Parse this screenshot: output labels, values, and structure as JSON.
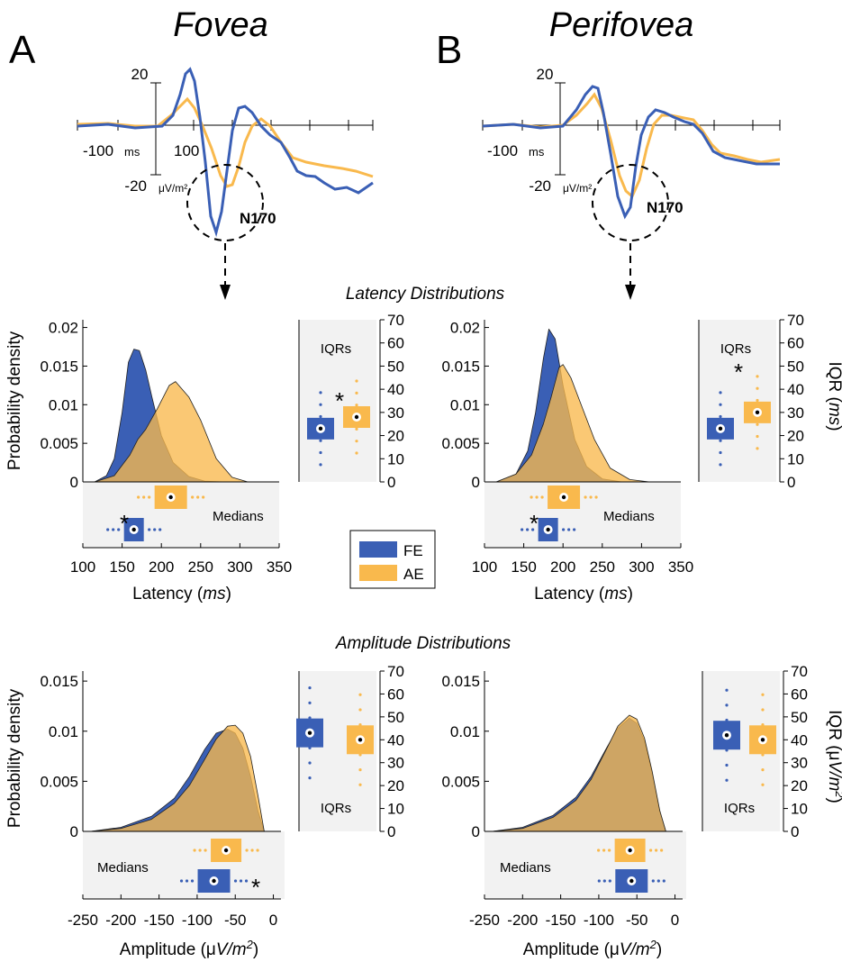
{
  "colors": {
    "fe": "#3a5fb5",
    "ae": "#f9b94d",
    "ae_dark": "#f5a623",
    "overlap": "#c9a561",
    "panel_bg": "#f2f2f2"
  },
  "panels": {
    "a_letter": "A",
    "b_letter": "B",
    "a_title": "Fovea",
    "b_title": "Perifovea"
  },
  "erp": {
    "label_20": "20",
    "label_m20": "-20",
    "label_m100": "-100",
    "ms": "ms",
    "label_100": "100",
    "unit": "μV/m²",
    "component": "N170"
  },
  "section_titles": {
    "latency": "Latency Distributions",
    "amplitude": "Amplitude Distributions"
  },
  "axes": {
    "prob_density": "Probability density",
    "latency_xlabel_a": "Latency (",
    "latency_xlabel_b": "ms",
    "latency_xlabel_c": ")",
    "amp_xlabel_a": "Amplitude (μ",
    "amp_xlabel_b": "V/m",
    "amp_xlabel_c": ")",
    "iqr_ms_a": "IQR (",
    "iqr_ms_b": "ms",
    "iqr_ms_c": ")",
    "iqr_amp_a": "IQR (μ",
    "iqr_amp_b": "V/m",
    "iqr_amp_c": ")",
    "iqrs": "IQRs",
    "medians": "Medians",
    "star": "*"
  },
  "legend": {
    "fe": "FE",
    "ae": "AE"
  },
  "chart_data": [
    {
      "type": "line",
      "panel": "A",
      "name": "ERP Fovea",
      "yticks": [
        "20",
        "-20"
      ],
      "series": [
        {
          "name": "FE"
        },
        {
          "name": "AE"
        }
      ]
    },
    {
      "type": "area",
      "panel": "A",
      "measure": "latency",
      "xlabel": "Latency (ms)",
      "ylabel": "Probability density",
      "xlim": [
        100,
        350
      ],
      "ylim": [
        0,
        0.021
      ],
      "xticks": [
        100,
        150,
        200,
        250,
        300,
        350
      ],
      "yticks": [
        "0",
        "0.005",
        "0.01",
        "0.015",
        "0.02"
      ],
      "series": [
        {
          "name": "FE",
          "x": [
            115,
            130,
            140,
            150,
            158,
            165,
            172,
            180,
            188,
            200,
            215,
            235,
            255,
            280
          ],
          "y": [
            0,
            0.0008,
            0.003,
            0.009,
            0.0155,
            0.0172,
            0.017,
            0.0145,
            0.011,
            0.006,
            0.0025,
            0.0007,
            0.0001,
            0
          ]
        },
        {
          "name": "AE",
          "x": [
            115,
            140,
            160,
            170,
            180,
            195,
            210,
            218,
            235,
            250,
            270,
            290,
            310
          ],
          "y": [
            0,
            0.0008,
            0.0035,
            0.0055,
            0.0068,
            0.0095,
            0.0125,
            0.013,
            0.011,
            0.008,
            0.003,
            0.0006,
            0
          ]
        }
      ],
      "medians": {
        "FE": 165,
        "AE": 212
      },
      "iqrs": {
        "FE": 23,
        "AE": 28
      },
      "significant": true
    },
    {
      "type": "area",
      "panel": "B",
      "measure": "latency",
      "xlabel": "Latency (ms)",
      "ylabel": "Probability density",
      "xlim": [
        100,
        350
      ],
      "ylim": [
        0,
        0.021
      ],
      "xticks": [
        100,
        150,
        200,
        250,
        300,
        350
      ],
      "yticks": [
        "0",
        "0.005",
        "0.01",
        "0.015",
        "0.02"
      ],
      "series": [
        {
          "name": "FE",
          "x": [
            115,
            140,
            155,
            165,
            175,
            182,
            190,
            200,
            215,
            230,
            250,
            275
          ],
          "y": [
            0,
            0.001,
            0.004,
            0.009,
            0.016,
            0.0198,
            0.0185,
            0.0125,
            0.0055,
            0.002,
            0.0004,
            0
          ]
        },
        {
          "name": "AE",
          "x": [
            115,
            140,
            160,
            175,
            185,
            195,
            200,
            210,
            225,
            240,
            260,
            285,
            310
          ],
          "y": [
            0,
            0.001,
            0.0035,
            0.0075,
            0.011,
            0.0148,
            0.0152,
            0.0135,
            0.0095,
            0.0055,
            0.0018,
            0.0003,
            0
          ]
        }
      ],
      "medians": {
        "FE": 181,
        "AE": 201
      },
      "iqrs": {
        "FE": 23,
        "AE": 30
      },
      "significant": true
    },
    {
      "type": "area",
      "panel": "A",
      "measure": "amplitude",
      "xlabel": "Amplitude (μV/m²)",
      "ylabel": "Probability density",
      "xlim": [
        -250,
        10
      ],
      "ylim": [
        0,
        0.016
      ],
      "xticks": [
        -250,
        -200,
        -150,
        -100,
        -50,
        0
      ],
      "yticks": [
        "0",
        "0.005",
        "0.01",
        "0.015"
      ],
      "series": [
        {
          "name": "FE",
          "x": [
            -240,
            -200,
            -160,
            -130,
            -110,
            -90,
            -75,
            -60,
            -50,
            -40,
            -30,
            -20,
            -12
          ],
          "y": [
            0,
            0.0004,
            0.0015,
            0.0033,
            0.0055,
            0.0082,
            0.0098,
            0.0102,
            0.0098,
            0.0083,
            0.0055,
            0.002,
            0
          ]
        },
        {
          "name": "AE",
          "x": [
            -240,
            -200,
            -160,
            -130,
            -110,
            -90,
            -75,
            -60,
            -50,
            -40,
            -30,
            -20,
            -12
          ],
          "y": [
            0,
            0.0003,
            0.0012,
            0.0028,
            0.0046,
            0.0072,
            0.0092,
            0.0105,
            0.0106,
            0.0098,
            0.0075,
            0.0035,
            0
          ]
        }
      ],
      "medians": {
        "FE": -78,
        "AE": -62
      },
      "iqrs": {
        "FE": 43,
        "AE": 40
      },
      "significant": true
    },
    {
      "type": "area",
      "panel": "B",
      "measure": "amplitude",
      "xlabel": "Amplitude (μV/m²)",
      "ylabel": "Probability density",
      "xlim": [
        -250,
        10
      ],
      "ylim": [
        0,
        0.016
      ],
      "xticks": [
        -250,
        -200,
        -150,
        -100,
        -50,
        0
      ],
      "yticks": [
        "0",
        "0.005",
        "0.01",
        "0.015"
      ],
      "series": [
        {
          "name": "FE",
          "x": [
            -240,
            -200,
            -160,
            -130,
            -110,
            -90,
            -75,
            -60,
            -50,
            -40,
            -30,
            -20,
            -12
          ],
          "y": [
            0,
            0.0004,
            0.0016,
            0.0034,
            0.0055,
            0.0083,
            0.0103,
            0.0113,
            0.0108,
            0.009,
            0.0058,
            0.002,
            0
          ]
        },
        {
          "name": "AE",
          "x": [
            -240,
            -200,
            -160,
            -130,
            -110,
            -90,
            -75,
            -60,
            -50,
            -40,
            -30,
            -20,
            -12
          ],
          "y": [
            0,
            0.0003,
            0.0014,
            0.0031,
            0.0052,
            0.0082,
            0.0105,
            0.0116,
            0.0112,
            0.0093,
            0.006,
            0.0021,
            0
          ]
        }
      ],
      "medians": {
        "FE": -57,
        "AE": -59
      },
      "iqrs": {
        "FE": 42,
        "AE": 40
      },
      "significant": false
    }
  ],
  "iqr_axis": {
    "ticks": [
      "0",
      "10",
      "20",
      "30",
      "40",
      "50",
      "60",
      "70"
    ]
  }
}
